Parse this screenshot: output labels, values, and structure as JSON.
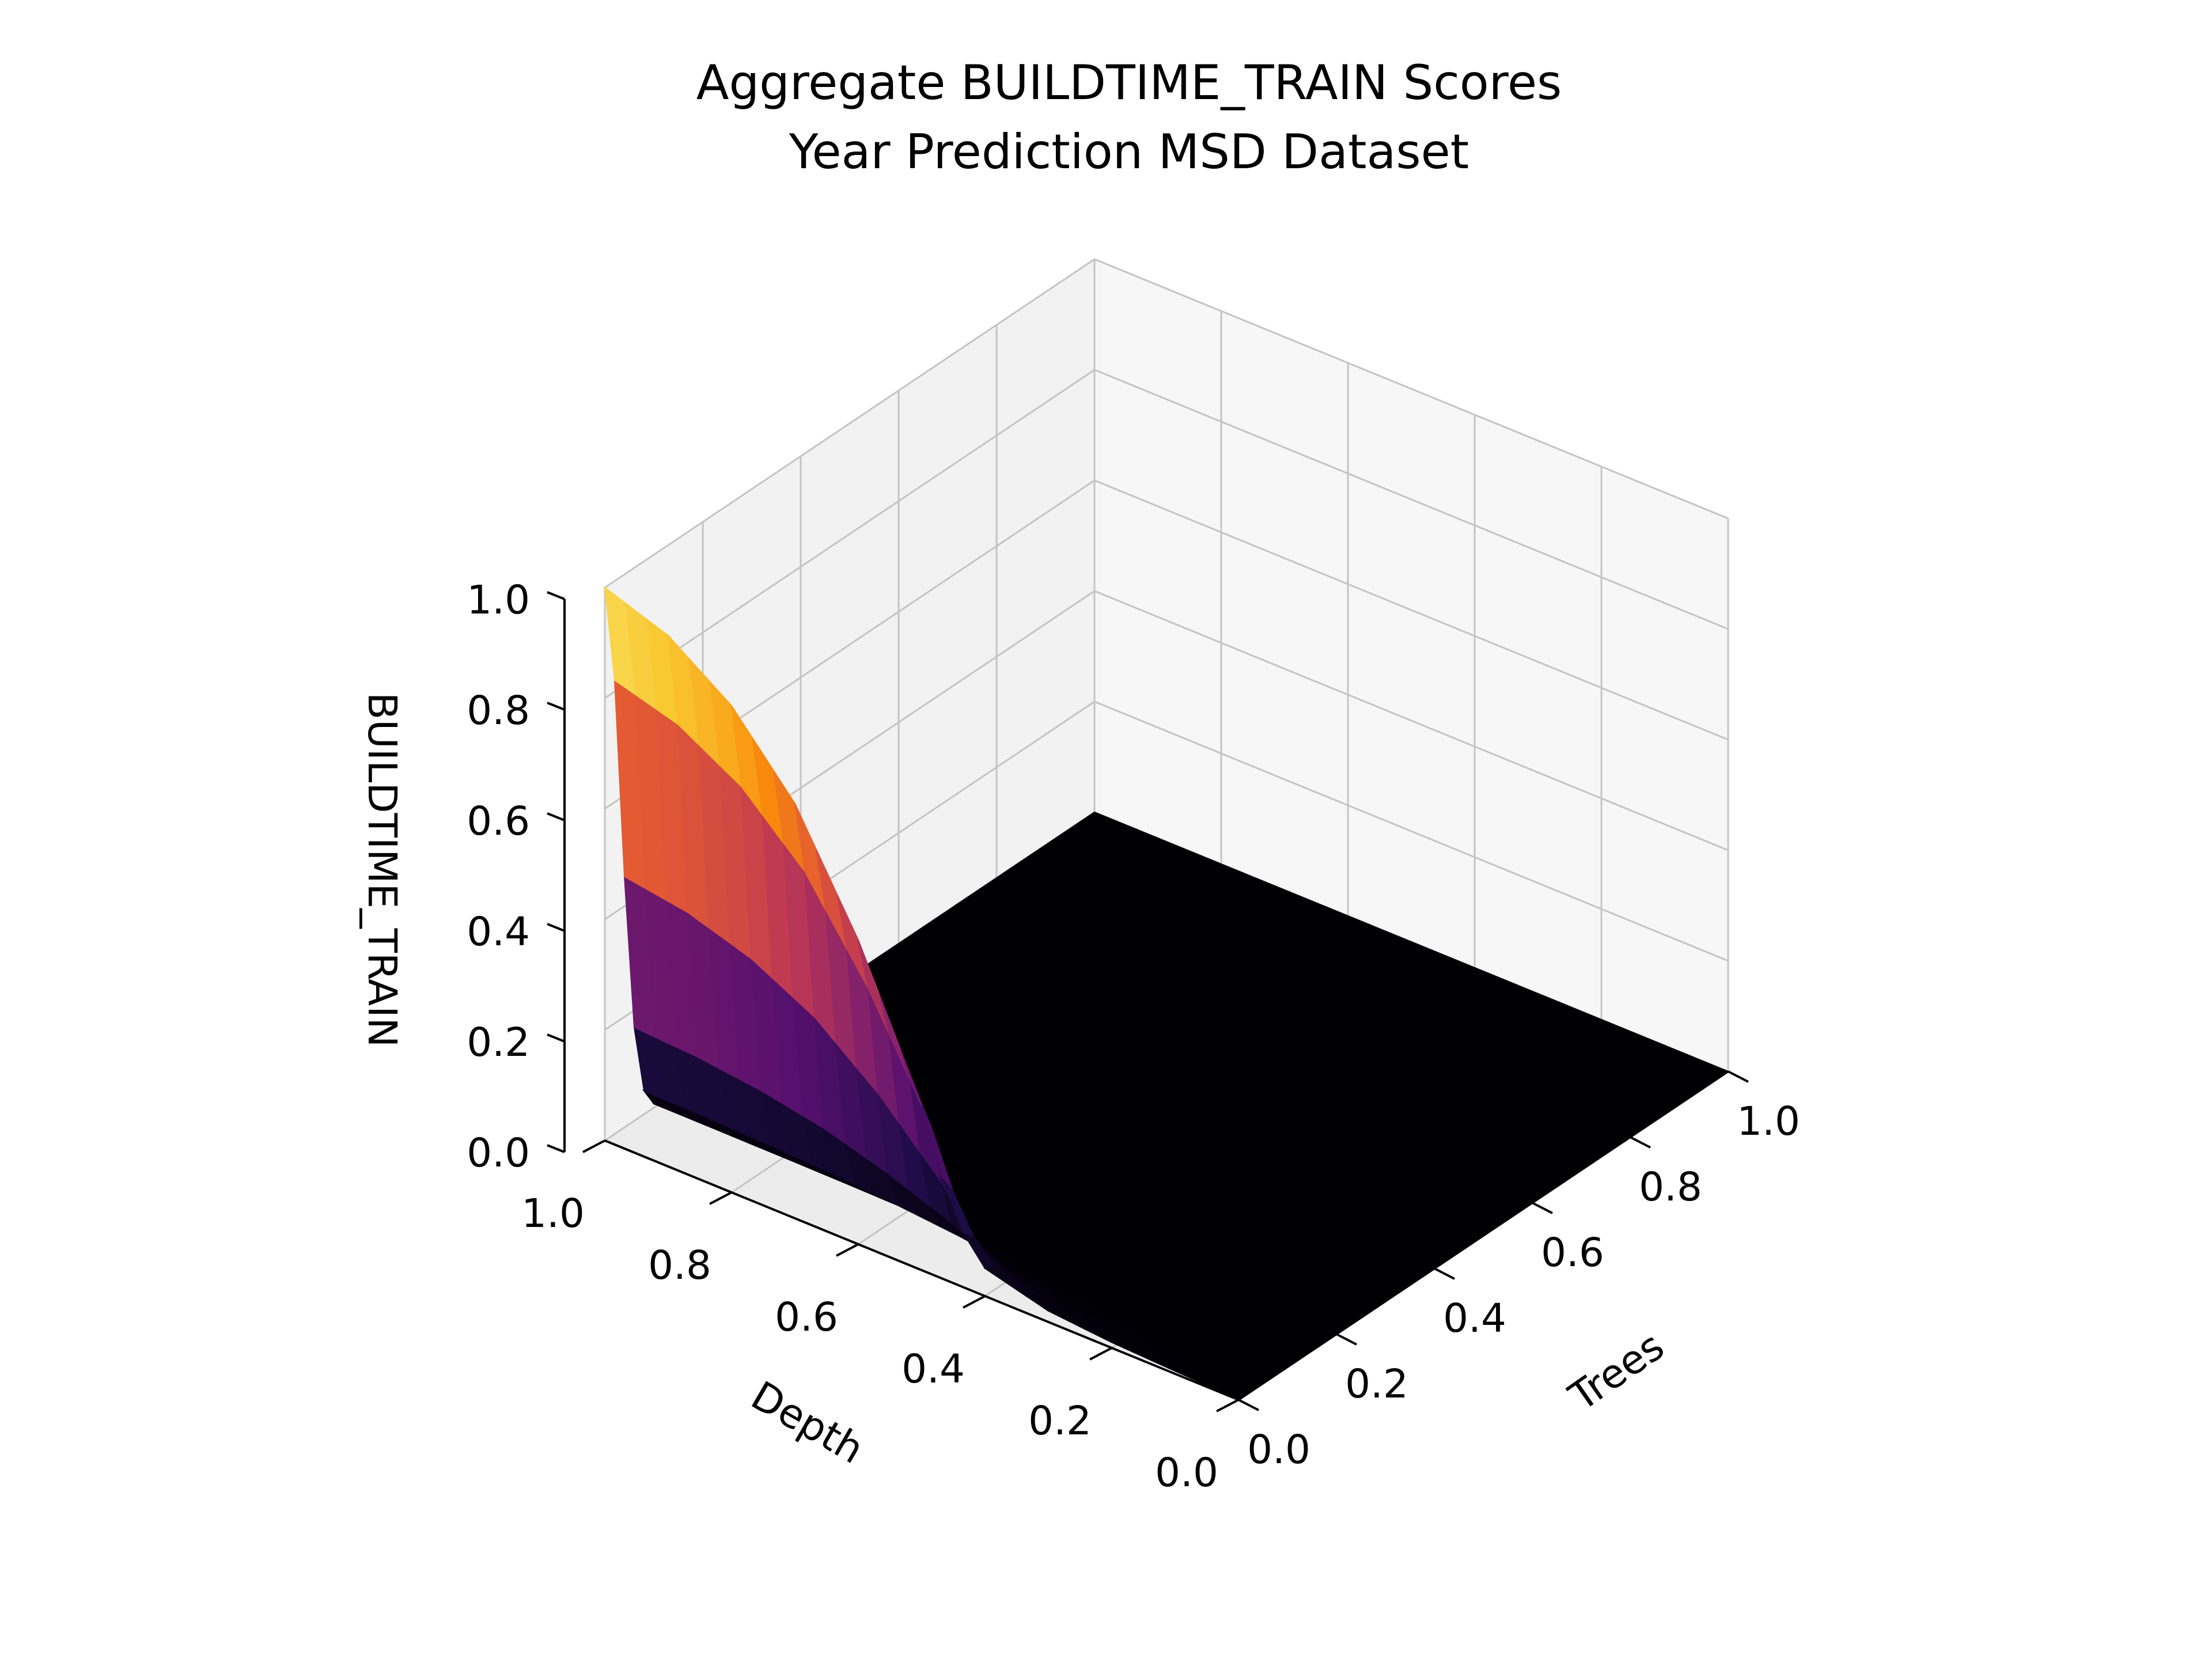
{
  "chart_data": {
    "type": "surface3d",
    "title_lines": [
      "Aggregate BUILDTIME_TRAIN Scores",
      "Year Prediction MSD Dataset"
    ],
    "xlabel": "Trees",
    "ylabel": "Depth",
    "zlabel": "BUILDTIME_TRAIN",
    "xlim": [
      0,
      1
    ],
    "ylim": [
      0,
      1
    ],
    "zlim": [
      0,
      1
    ],
    "x_ticks": [
      "0.0",
      "0.2",
      "0.4",
      "0.6",
      "0.8",
      "1.0"
    ],
    "y_ticks": [
      "0.0",
      "0.2",
      "0.4",
      "0.6",
      "0.8",
      "1.0"
    ],
    "z_ticks": [
      "0.0",
      "0.2",
      "0.4",
      "0.6",
      "0.8",
      "1.0"
    ],
    "colormap": "inferno",
    "grid": true,
    "description_of_surface": {
      "trees": [
        0,
        0.02,
        0.04,
        0.06,
        0.08,
        0.1,
        0.15,
        0.2,
        0.3,
        0.4,
        0.6,
        0.8,
        1.0
      ],
      "peak_profile_along_depth": [
        {
          "depth": 1.0,
          "value": 1.0
        },
        {
          "depth": 0.9,
          "value": 0.96
        },
        {
          "depth": 0.8,
          "value": 0.88
        },
        {
          "depth": 0.7,
          "value": 0.75
        },
        {
          "depth": 0.6,
          "value": 0.55
        },
        {
          "depth": 0.5,
          "value": 0.3
        },
        {
          "depth": 0.45,
          "value": 0.12
        },
        {
          "depth": 0.4,
          "value": 0.05
        },
        {
          "depth": 0.3,
          "value": 0.02
        },
        {
          "depth": 0.2,
          "value": 0.01
        },
        {
          "depth": 0.0,
          "value": 0.0
        }
      ]
    }
  }
}
